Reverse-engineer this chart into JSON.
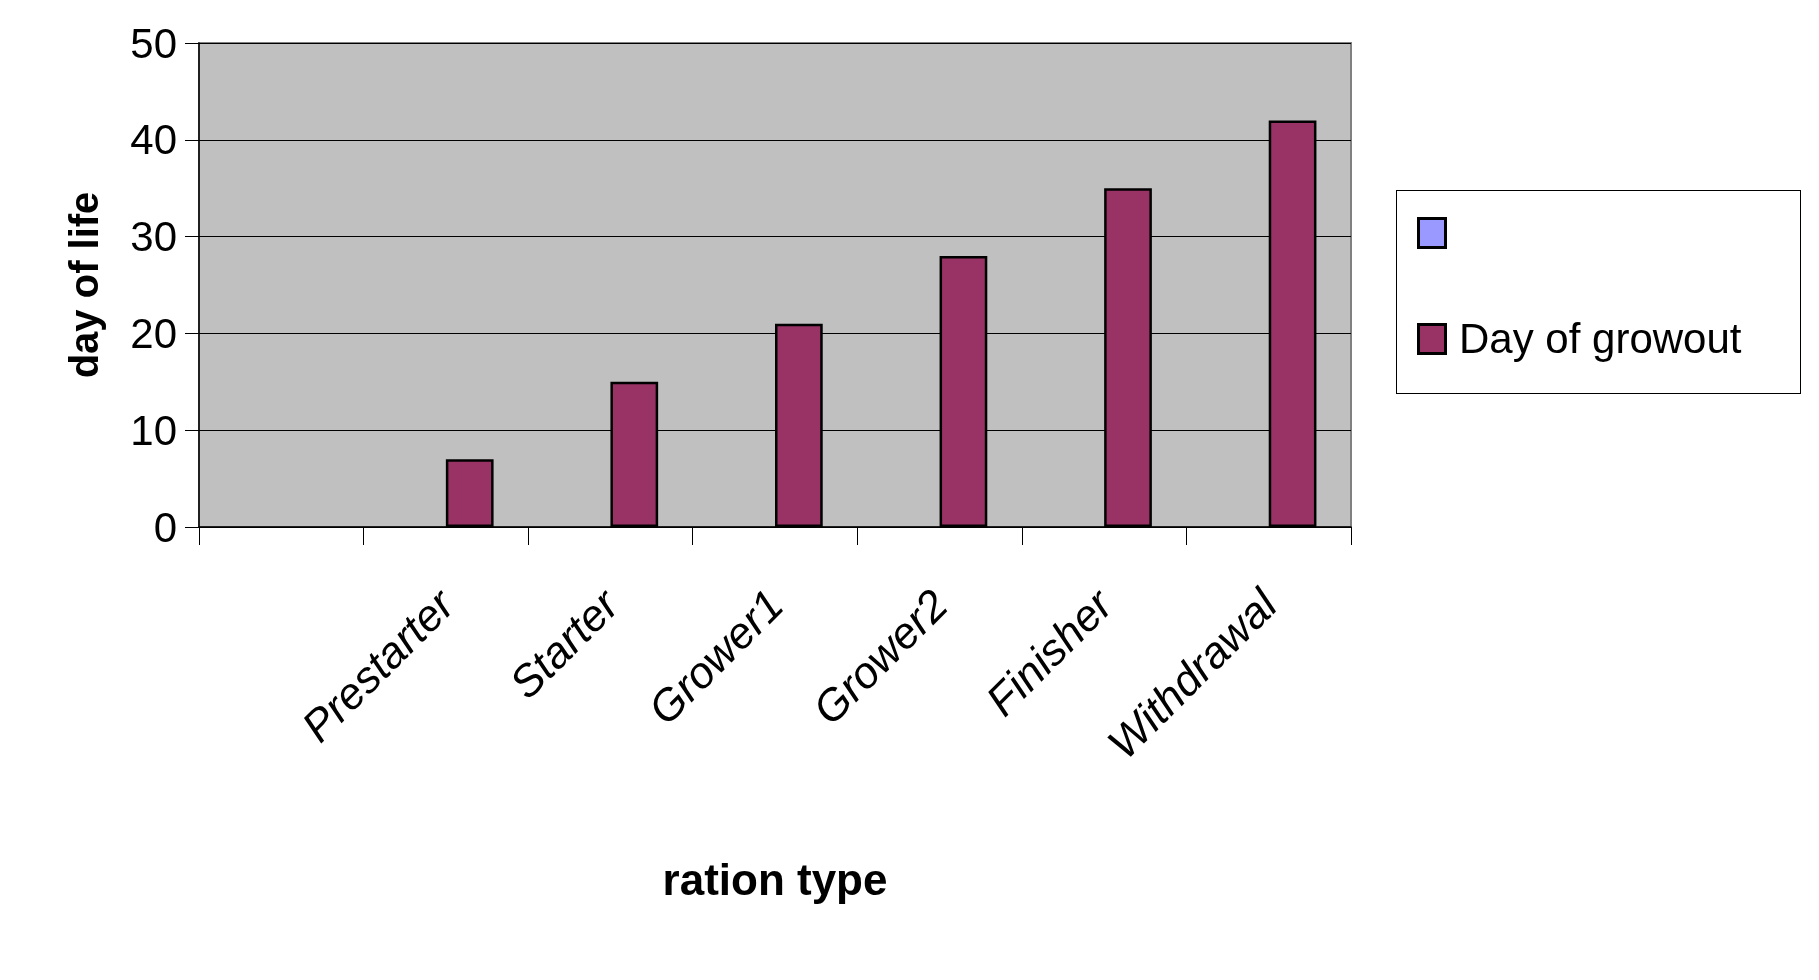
{
  "chart_data": {
    "type": "bar",
    "xlabel": "ration type",
    "ylabel": "day of life",
    "categories": [
      null,
      "Prestarter",
      "Starter",
      "Grower1",
      "Grower2",
      "Finisher",
      "Withdrawal"
    ],
    "series": [
      {
        "color": "#9999ff",
        "values": [
          null,
          null,
          null,
          null,
          null,
          null,
          null
        ]
      },
      {
        "name": "Day of growout",
        "color": "#993366",
        "values": [
          null,
          7,
          15,
          21,
          28,
          35,
          42
        ]
      }
    ],
    "ylim": [
      0,
      50
    ],
    "yticks": [
      0,
      10,
      20,
      30,
      40,
      50
    ],
    "grid": "y",
    "legend": "right"
  }
}
